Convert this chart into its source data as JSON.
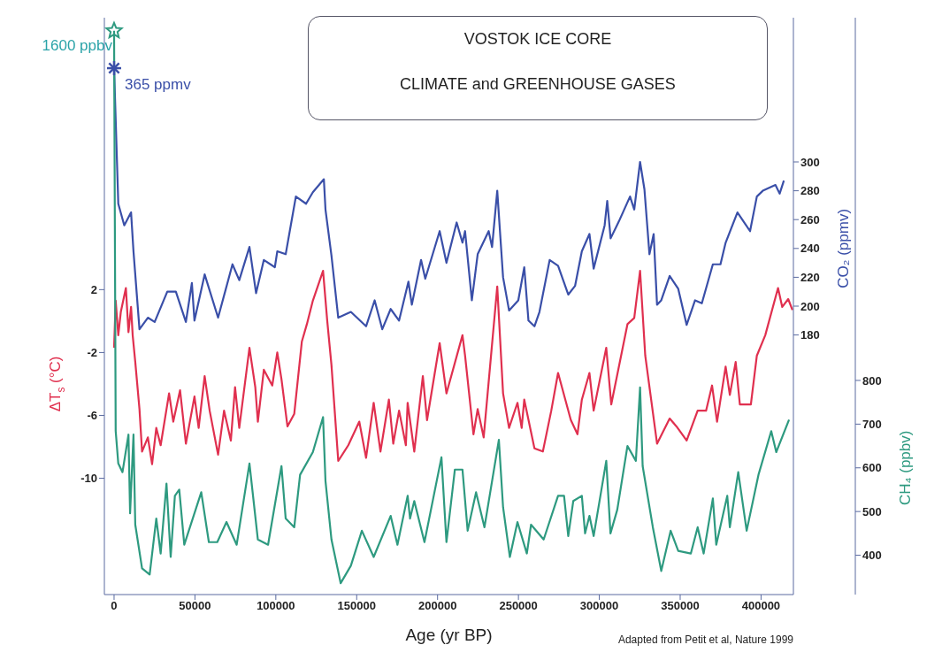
{
  "chart_data": {
    "type": "line",
    "title": "VOSTOK ICE CORE",
    "subtitle": "CLIMATE and GREENHOUSE GASES",
    "xlabel": "Age (yr BP)",
    "ylabel": "ΔT$_{s}$ (°C)",
    "y2label": "CO₂ (ppmv)",
    "y3label": "CH₄ (ppbv)",
    "xlim": [
      -6000,
      420000
    ],
    "xticks": [
      0,
      50000,
      100000,
      150000,
      200000,
      250000,
      300000,
      350000,
      400000
    ],
    "ylim": [
      -17.4,
      19.3
    ],
    "yticks": [
      2,
      -2,
      -6,
      -10
    ],
    "y2lim": [
      0,
      400
    ],
    "y2ticks": [
      180,
      200,
      220,
      240,
      260,
      280,
      300
    ],
    "y3lim": [
      310,
      1630
    ],
    "y3ticks": [
      400,
      500,
      600,
      700,
      800
    ],
    "annotations": [
      "1600 ppbv",
      "365 ppmv",
      "Adapted from Petit et al, Nature 1999"
    ],
    "series": [
      {
        "color": "#3a4fa8",
        "axis": "y2",
        "x": [
          0,
          2600,
          6300,
          10500,
          12000,
          15700,
          20900,
          25100,
          32900,
          38200,
          44400,
          48100,
          49700,
          56000,
          64300,
          73200,
          77400,
          83700,
          87800,
          92600,
          99400,
          100900,
          106100,
          112400,
          118700,
          122900,
          129700,
          130700,
          134400,
          138600,
          146400,
          155800,
          161100,
          165800,
          171000,
          176200,
          182000,
          184100,
          189800,
          192400,
          201300,
          205500,
          211800,
          215400,
          217000,
          221200,
          224800,
          231600,
          233700,
          236900,
          240500,
          244200,
          249900,
          253600,
          256200,
          259900,
          263000,
          269300,
          274500,
          280800,
          285000,
          289200,
          293900,
          296500,
          303300,
          304900,
          307000,
          312200,
          319000,
          321600,
          325200,
          327900,
          331000,
          333600,
          335700,
          338300,
          343500,
          348800,
          354000,
          359200,
          363400,
          370200,
          374900,
          378100,
          385400,
          393200,
          397400,
          401100,
          408900,
          411500,
          414100
        ],
        "values": [
          365,
          271,
          256,
          265,
          238,
          184,
          192,
          189,
          210,
          210,
          189,
          216,
          190,
          222,
          192,
          229,
          218,
          241,
          209,
          232,
          227,
          238,
          236,
          276,
          271,
          279,
          288,
          267,
          235,
          192,
          196,
          186,
          204,
          184,
          198,
          190,
          217,
          201,
          232,
          219,
          252,
          230,
          258,
          244,
          252,
          204,
          236,
          252,
          241,
          280,
          220,
          197,
          204,
          227,
          190,
          186,
          196,
          232,
          228,
          208,
          214,
          238,
          250,
          226,
          256,
          273,
          247,
          259,
          276,
          267,
          300,
          281,
          236,
          250,
          201,
          204,
          221,
          212,
          187,
          204,
          202,
          229,
          229,
          244,
          265,
          252,
          276,
          280,
          284,
          278,
          287
        ]
      },
      {
        "color": "#e0304f",
        "x": [
          0,
          1000,
          2600,
          4200,
          7300,
          8900,
          10500,
          11500,
          13100,
          15700,
          17300,
          20900,
          23500,
          26100,
          28800,
          34000,
          36600,
          40800,
          44400,
          49700,
          52300,
          56000,
          59100,
          64300,
          68000,
          72200,
          74800,
          77400,
          83700,
          87300,
          88900,
          92600,
          97800,
          100900,
          103500,
          107200,
          111400,
          116100,
          119200,
          122900,
          129200,
          131800,
          134400,
          138600,
          144800,
          151600,
          155800,
          160500,
          164700,
          169900,
          172600,
          176200,
          180400,
          181500,
          185600,
          190900,
          193500,
          201300,
          205500,
          215400,
          217000,
          222200,
          224800,
          228500,
          236900,
          240500,
          244200,
          249400,
          252000,
          253600,
          259900,
          265100,
          270300,
          274500,
          282400,
          286500,
          289200,
          293900,
          296500,
          304300,
          307400,
          317400,
          321600,
          325200,
          328400,
          335700,
          343500,
          347700,
          354000,
          360800,
          366000,
          369700,
          372800,
          378100,
          380700,
          384300,
          386900,
          393700,
          397400,
          402600,
          410500,
          413100,
          416800,
          419400
        ],
        "values": [
          -1.7,
          1.3,
          -0.9,
          0.6,
          2.1,
          -0.7,
          0.9,
          -0.9,
          -2.6,
          -5.6,
          -8.3,
          -7.4,
          -9.1,
          -6.8,
          -7.9,
          -4.6,
          -6.4,
          -4.4,
          -7.8,
          -4.8,
          -6.8,
          -3.5,
          -5.7,
          -8.5,
          -5.7,
          -7.6,
          -4.2,
          -6.8,
          -1.7,
          -4.2,
          -6.4,
          -3.1,
          -4.1,
          -2.0,
          -3.7,
          -6.7,
          -5.9,
          -1.3,
          -0.2,
          1.3,
          3.2,
          0,
          -2.8,
          -8.9,
          -7.9,
          -6.4,
          -8.7,
          -5.2,
          -8.3,
          -5.0,
          -7.8,
          -5.7,
          -7.9,
          -5.2,
          -8.3,
          -3.5,
          -6.3,
          -1.4,
          -4.6,
          -0.9,
          -2.2,
          -7.2,
          -5.6,
          -7.4,
          2.2,
          -4.6,
          -6.8,
          -5.2,
          -6.8,
          -5.0,
          -8.1,
          -8.3,
          -5.7,
          -3.3,
          -6.3,
          -7.2,
          -5.0,
          -3.3,
          -5.7,
          -1.7,
          -5.3,
          -0.2,
          0.2,
          3.2,
          -2.2,
          -7.8,
          -6.2,
          -6.7,
          -7.6,
          -5.7,
          -5.7,
          -4.1,
          -6.4,
          -2.9,
          -4.7,
          -2.6,
          -5.3,
          -5.3,
          -2.2,
          -0.9,
          2.1,
          0.9,
          1.4,
          0.7
        ]
      },
      {
        "color": "#2e9a80",
        "axis": "y3",
        "x": [
          0,
          1000,
          2600,
          5200,
          8900,
          9900,
          12000,
          13100,
          17300,
          22000,
          26100,
          28800,
          32400,
          35000,
          37600,
          40300,
          43400,
          53900,
          58600,
          63800,
          69500,
          75800,
          83700,
          88900,
          95200,
          103500,
          106100,
          111400,
          115000,
          122900,
          129200,
          130700,
          134400,
          140100,
          146400,
          153200,
          160500,
          171000,
          175200,
          181500,
          183000,
          185600,
          191900,
          202400,
          205500,
          210700,
          215400,
          218600,
          223800,
          229000,
          237900,
          240500,
          244700,
          249400,
          255200,
          257800,
          265600,
          274500,
          278200,
          280800,
          283900,
          289200,
          291200,
          293900,
          296500,
          304300,
          306900,
          311100,
          317400,
          322600,
          325200,
          326800,
          333100,
          338300,
          344100,
          348800,
          356600,
          360800,
          364500,
          370200,
          372300,
          379100,
          380700,
          385900,
          391100,
          398400,
          406300,
          409400,
          417300
        ],
        "values": [
          1600,
          684,
          610,
          590,
          676,
          496,
          676,
          470,
          370,
          356,
          484,
          404,
          564,
          396,
          536,
          550,
          424,
          544,
          430,
          430,
          476,
          424,
          610,
          436,
          424,
          604,
          484,
          464,
          584,
          636,
          716,
          570,
          436,
          336,
          376,
          456,
          396,
          490,
          424,
          536,
          484,
          524,
          430,
          624,
          430,
          596,
          596,
          456,
          544,
          464,
          664,
          510,
          396,
          476,
          404,
          470,
          436,
          536,
          536,
          444,
          524,
          536,
          450,
          490,
          444,
          616,
          450,
          504,
          650,
          616,
          784,
          604,
          464,
          364,
          456,
          410,
          404,
          464,
          404,
          530,
          424,
          536,
          464,
          590,
          456,
          584,
          684,
          636,
          710
        ]
      }
    ]
  }
}
